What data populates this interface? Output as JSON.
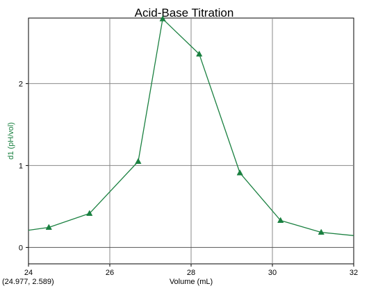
{
  "chart_data": {
    "type": "line",
    "title": "Acid-Base Titration",
    "xlabel": "Volume (mL)",
    "ylabel": "d1 (pH/vol)",
    "xlim": [
      24,
      32
    ],
    "ylim": [
      -0.2,
      2.8
    ],
    "x_ticks": [
      24,
      26,
      28,
      30,
      32
    ],
    "y_ticks": [
      0,
      1,
      2
    ],
    "grid": true,
    "series": [
      {
        "color": "#1a8040",
        "marker": "triangle",
        "x": [
          24,
          24.5,
          25.5,
          26.7,
          27.3,
          28.2,
          29.2,
          30.2,
          31.2,
          32
        ],
        "y": [
          0.21,
          0.245,
          0.415,
          1.05,
          2.79,
          2.36,
          0.91,
          0.33,
          0.185,
          0.145
        ],
        "marker_x": [
          24.5,
          25.5,
          26.7,
          27.3,
          28.2,
          29.2,
          30.2,
          31.2
        ]
      }
    ]
  },
  "coordinate_readout": "(24.977, 2.589)",
  "colors": {
    "series": "#1a8040",
    "ylabel": "#1a8040",
    "grid": "#888888",
    "zero_line": "#555555"
  }
}
